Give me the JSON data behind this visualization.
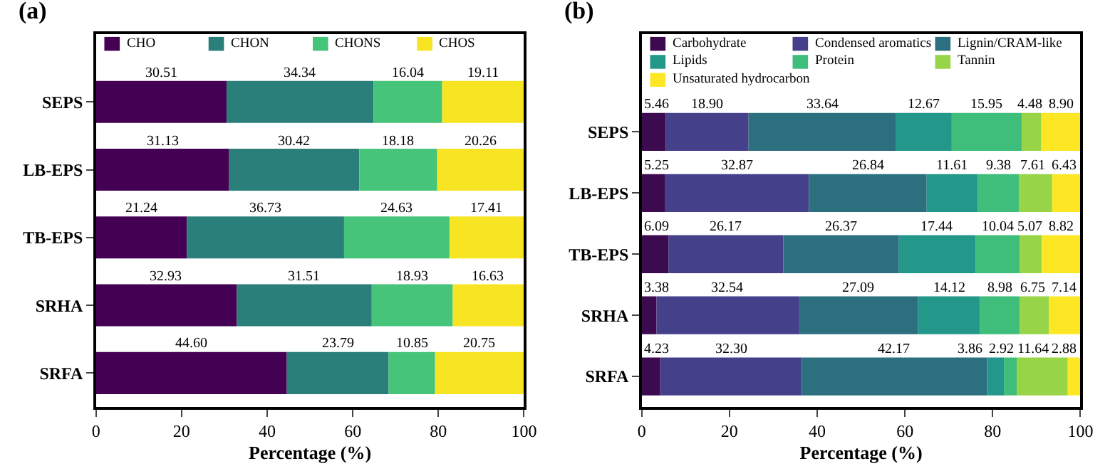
{
  "chart_data": [
    {
      "type": "bar",
      "orientation": "horizontal",
      "stacked": true,
      "title": "(a)",
      "xlabel": "Percentage (%)",
      "categories": [
        "SEPS",
        "LB-EPS",
        "TB-EPS",
        "SRHA",
        "SRFA"
      ],
      "xlim": [
        0,
        100
      ],
      "xticks": [
        0,
        20,
        40,
        60,
        80,
        100
      ],
      "legend": "top",
      "series": [
        {
          "name": "CHO",
          "color": "#440154",
          "values": [
            30.51,
            31.13,
            21.24,
            32.93,
            44.6
          ],
          "value_labels": [
            "30.51",
            "31.13",
            "21.24",
            "32.93",
            "44.60"
          ]
        },
        {
          "name": "CHON",
          "color": "#2a7f7a",
          "values": [
            34.34,
            30.42,
            36.73,
            31.51,
            23.79
          ],
          "value_labels": [
            "34.34",
            "30.42",
            "36.73",
            "31.51",
            "23.79"
          ]
        },
        {
          "name": "CHONS",
          "color": "#45c47a",
          "values": [
            16.04,
            18.18,
            24.63,
            18.93,
            10.85
          ],
          "value_labels": [
            "16.04",
            "18.18",
            "24.63",
            "18.93",
            "10.85"
          ]
        },
        {
          "name": "CHOS",
          "color": "#f7e523",
          "values": [
            19.11,
            20.26,
            17.41,
            16.63,
            20.75
          ],
          "value_labels": [
            "19.11",
            "20.26",
            "17.41",
            "16.63",
            "20.75"
          ]
        }
      ]
    },
    {
      "type": "bar",
      "orientation": "horizontal",
      "stacked": true,
      "title": "(b)",
      "xlabel": "Percentage (%)",
      "categories": [
        "SEPS",
        "LB-EPS",
        "TB-EPS",
        "SRHA",
        "SRFA"
      ],
      "xlim": [
        0,
        100
      ],
      "xticks": [
        0,
        20,
        40,
        60,
        80,
        100
      ],
      "legend": "top",
      "series": [
        {
          "name": "Carbohydrate",
          "color": "#3b0a4f",
          "values": [
            5.46,
            5.25,
            6.09,
            3.38,
            4.23
          ],
          "value_labels": [
            "5.46",
            "5.25",
            "6.09",
            "3.38",
            "4.23"
          ]
        },
        {
          "name": "Condensed aromatics",
          "color": "#45408a",
          "values": [
            18.9,
            32.87,
            26.17,
            32.54,
            32.3
          ],
          "value_labels": [
            "18.90",
            "32.87",
            "26.17",
            "32.54",
            "32.30"
          ]
        },
        {
          "name": "Lignin/CRAM-like",
          "color": "#2c6f7e",
          "values": [
            33.64,
            26.84,
            26.37,
            27.09,
            42.17
          ],
          "value_labels": [
            "33.64",
            "26.84",
            "26.37",
            "27.09",
            "42.17"
          ]
        },
        {
          "name": "Lipids",
          "color": "#23988a",
          "values": [
            12.67,
            11.61,
            17.44,
            14.12,
            3.86
          ],
          "value_labels": [
            "12.67",
            "11.61",
            "17.44",
            "14.12",
            "3.86"
          ]
        },
        {
          "name": "Protein",
          "color": "#3fbd7b",
          "values": [
            15.95,
            9.38,
            10.04,
            8.98,
            2.92
          ],
          "value_labels": [
            "15.95",
            "9.38",
            "10.04",
            "8.98",
            "2.92"
          ]
        },
        {
          "name": "Tannin",
          "color": "#98d447",
          "values": [
            4.48,
            7.61,
            5.07,
            6.75,
            11.64
          ],
          "value_labels": [
            "4.48",
            "7.61",
            "5.07",
            "6.75",
            "11.64"
          ]
        },
        {
          "name": "Unsaturated hydrocarbon",
          "color": "#fde725",
          "values": [
            8.9,
            6.43,
            8.82,
            7.14,
            2.88
          ],
          "value_labels": [
            "8.90",
            "6.43",
            "8.82",
            "7.14",
            "2.88"
          ]
        }
      ]
    }
  ]
}
